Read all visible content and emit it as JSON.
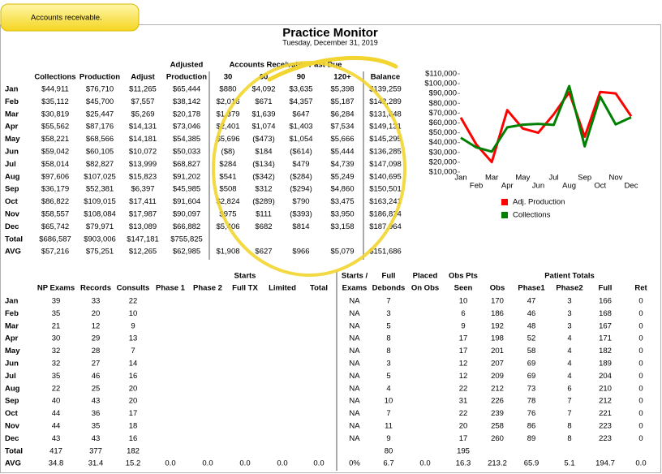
{
  "callout": "Accounts receivable.",
  "header": {
    "title": "Practice Monitor",
    "date": "Tuesday, December 31, 2019"
  },
  "upper": {
    "header_top": {
      "adjusted": "Adjusted",
      "past_due": "Accounts Receivable Past Due"
    },
    "columns": [
      null,
      "Collections",
      "Production",
      "Adjust",
      "Production",
      "30",
      "60",
      "90",
      "120+",
      "Balance"
    ],
    "rows": [
      [
        "Jan",
        "$44,911",
        "$76,710",
        "$11,265",
        "$65,444",
        "$880",
        "$4,092",
        "$3,635",
        "$5,398",
        "$139,259"
      ],
      [
        "Feb",
        "$35,112",
        "$45,700",
        "$7,557",
        "$38,142",
        "$2,016",
        "$671",
        "$4,357",
        "$5,187",
        "$142,289"
      ],
      [
        "Mar",
        "$30,819",
        "$25,447",
        "$5,269",
        "$20,178",
        "$1,379",
        "$1,639",
        "$647",
        "$6,284",
        "$131,648"
      ],
      [
        "Apr",
        "$55,562",
        "$87,176",
        "$14,131",
        "$73,046",
        "$2,401",
        "$1,074",
        "$1,403",
        "$7,534",
        "$149,131"
      ],
      [
        "May",
        "$58,221",
        "$68,566",
        "$14,181",
        "$54,385",
        "$5,696",
        "($473)",
        "$1,054",
        "$5,666",
        "$145,295"
      ],
      [
        "Jun",
        "$59,042",
        "$60,105",
        "$10,072",
        "$50,033",
        "($8)",
        "$184",
        "($614)",
        "$5,444",
        "$136,285"
      ],
      [
        "Jul",
        "$58,014",
        "$82,827",
        "$13,999",
        "$68,827",
        "$284",
        "($134)",
        "$479",
        "$4,739",
        "$147,098"
      ],
      [
        "Aug",
        "$97,606",
        "$107,025",
        "$15,823",
        "$91,202",
        "$541",
        "($342)",
        "($284)",
        "$5,249",
        "$140,695"
      ],
      [
        "Sep",
        "$36,179",
        "$52,381",
        "$6,397",
        "$45,985",
        "$508",
        "$312",
        "($294)",
        "$4,860",
        "$150,501"
      ],
      [
        "Oct",
        "$86,822",
        "$109,015",
        "$17,411",
        "$91,604",
        "$2,824",
        "($289)",
        "$790",
        "$3,475",
        "$163,241"
      ],
      [
        "Nov",
        "$58,557",
        "$108,084",
        "$17,987",
        "$90,097",
        "$975",
        "$111",
        "($393)",
        "$3,950",
        "$186,824"
      ],
      [
        "Dec",
        "$65,742",
        "$79,971",
        "$13,089",
        "$66,882",
        "$5,406",
        "$682",
        "$814",
        "$3,158",
        "$187,964"
      ],
      [
        "Total",
        "$686,587",
        "$903,006",
        "$147,181",
        "$755,825",
        null,
        null,
        null,
        null,
        null
      ],
      [
        "AVG",
        "$57,216",
        "$75,251",
        "$12,265",
        "$62,985",
        "$1,908",
        "$627",
        "$966",
        "$5,079",
        "$151,686"
      ]
    ]
  },
  "lower": {
    "header_row1": [
      null,
      null,
      null,
      null,
      null,
      null,
      "Starts",
      null,
      null,
      "Starts /",
      "Full",
      "Placed",
      "Obs Pts",
      null,
      null,
      "Patient Totals",
      null,
      null
    ],
    "header_row2": [
      null,
      "NP Exams",
      "Records",
      "Consults",
      "Phase 1",
      "Phase 2",
      "Full TX",
      "Limited",
      "Total",
      "Exams",
      "Debonds",
      "On Obs",
      "Seen",
      "Obs",
      "Phase1",
      "Phase2",
      "Full",
      "Ret"
    ],
    "rows": [
      [
        "Jan",
        "39",
        "33",
        "22",
        null,
        null,
        null,
        null,
        null,
        "NA",
        "7",
        null,
        "10",
        "170",
        "47",
        "3",
        "166",
        "0"
      ],
      [
        "Feb",
        "35",
        "20",
        "10",
        null,
        null,
        null,
        null,
        null,
        "NA",
        "3",
        null,
        "6",
        "186",
        "46",
        "3",
        "168",
        "0"
      ],
      [
        "Mar",
        "21",
        "12",
        "9",
        null,
        null,
        null,
        null,
        null,
        "NA",
        "5",
        null,
        "9",
        "192",
        "48",
        "3",
        "167",
        "0"
      ],
      [
        "Apr",
        "30",
        "29",
        "13",
        null,
        null,
        null,
        null,
        null,
        "NA",
        "8",
        null,
        "17",
        "198",
        "52",
        "4",
        "171",
        "0"
      ],
      [
        "May",
        "32",
        "28",
        "7",
        null,
        null,
        null,
        null,
        null,
        "NA",
        "8",
        null,
        "17",
        "201",
        "58",
        "4",
        "182",
        "0"
      ],
      [
        "Jun",
        "32",
        "27",
        "14",
        null,
        null,
        null,
        null,
        null,
        "NA",
        "3",
        null,
        "12",
        "207",
        "69",
        "4",
        "189",
        "0"
      ],
      [
        "Jul",
        "35",
        "46",
        "16",
        null,
        null,
        null,
        null,
        null,
        "NA",
        "5",
        null,
        "12",
        "209",
        "69",
        "4",
        "204",
        "0"
      ],
      [
        "Aug",
        "22",
        "25",
        "20",
        null,
        null,
        null,
        null,
        null,
        "NA",
        "4",
        null,
        "22",
        "212",
        "73",
        "6",
        "210",
        "0"
      ],
      [
        "Sep",
        "40",
        "43",
        "20",
        null,
        null,
        null,
        null,
        null,
        "NA",
        "10",
        null,
        "31",
        "226",
        "78",
        "7",
        "212",
        "0"
      ],
      [
        "Oct",
        "44",
        "36",
        "17",
        null,
        null,
        null,
        null,
        null,
        "NA",
        "7",
        null,
        "22",
        "239",
        "76",
        "7",
        "221",
        "0"
      ],
      [
        "Nov",
        "44",
        "35",
        "18",
        null,
        null,
        null,
        null,
        null,
        "NA",
        "11",
        null,
        "20",
        "258",
        "86",
        "8",
        "223",
        "0"
      ],
      [
        "Dec",
        "43",
        "43",
        "16",
        null,
        null,
        null,
        null,
        null,
        "NA",
        "9",
        null,
        "17",
        "260",
        "89",
        "8",
        "223",
        "0"
      ],
      [
        "Total",
        "417",
        "377",
        "182",
        null,
        null,
        null,
        null,
        null,
        null,
        "80",
        null,
        "195",
        null,
        null,
        null,
        null,
        null
      ],
      [
        "AVG",
        "34.8",
        "31.4",
        "15.2",
        "0.0",
        "0.0",
        "0.0",
        "0.0",
        "0.0",
        "0%",
        "6.7",
        "0.0",
        "16.3",
        "213.2",
        "65.9",
        "5.1",
        "194.7",
        "0.0"
      ]
    ]
  },
  "chart_data": {
    "type": "line",
    "categories": [
      "Jan",
      "Feb",
      "Mar",
      "Apr",
      "May",
      "Jun",
      "Jul",
      "Aug",
      "Sep",
      "Oct",
      "Nov",
      "Dec"
    ],
    "series": [
      {
        "name": "Adj. Production",
        "color": "#ff0000",
        "values": [
          65444,
          38142,
          20178,
          73046,
          54385,
          50033,
          68827,
          91202,
          45985,
          91604,
          90097,
          66882
        ]
      },
      {
        "name": "Collections",
        "color": "#008000",
        "values": [
          44911,
          35112,
          30819,
          55562,
          58221,
          59042,
          58014,
          97606,
          36179,
          86822,
          58557,
          65742
        ]
      }
    ],
    "ylim": [
      10000,
      110000
    ],
    "yticks": [
      {
        "value": 10000,
        "label": "$10,000"
      },
      {
        "value": 20000,
        "label": "$20,000"
      },
      {
        "value": 30000,
        "label": "$30,000"
      },
      {
        "value": 40000,
        "label": "$40,000"
      },
      {
        "value": 50000,
        "label": "$50,000"
      },
      {
        "value": 60000,
        "label": "$60,000"
      },
      {
        "value": 70000,
        "label": "$70,000"
      },
      {
        "value": 80000,
        "label": "$80,000"
      },
      {
        "value": 90000,
        "label": "$90,000"
      },
      {
        "value": 100000,
        "label": "$100,000"
      },
      {
        "value": 110000,
        "label": "$110,000"
      }
    ],
    "grid": false,
    "legend": "bottom"
  }
}
